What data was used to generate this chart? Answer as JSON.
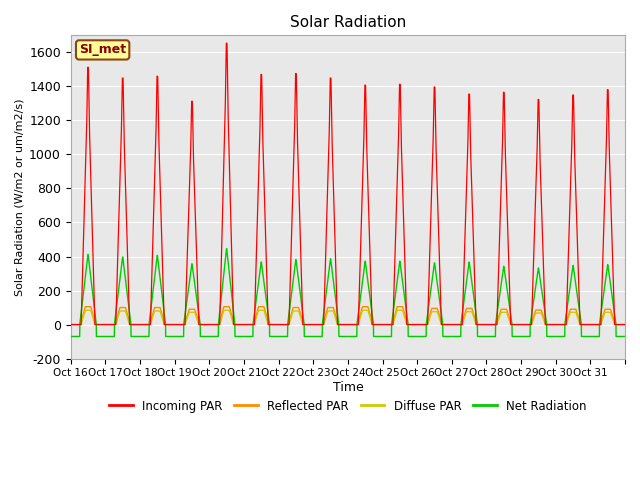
{
  "title": "Solar Radiation",
  "xlabel": "Time",
  "ylabel": "Solar Radiation (W/m2 or um/m2/s)",
  "ylim": [
    -200,
    1700
  ],
  "yticks": [
    -200,
    0,
    200,
    400,
    600,
    800,
    1000,
    1200,
    1400,
    1600
  ],
  "x_labels": [
    "Oct 16",
    "Oct 17",
    "Oct 18",
    "Oct 19",
    "Oct 20",
    "Oct 21",
    "Oct 22",
    "Oct 23",
    "Oct 24",
    "Oct 25",
    "Oct 26",
    "Oct 27",
    "Oct 28",
    "Oct 29",
    "Oct 30",
    "Oct 31"
  ],
  "color_incoming": "#FF0000",
  "color_reflected": "#FF8C00",
  "color_diffuse": "#CCCC00",
  "color_net": "#00CC00",
  "label_box": "SI_met",
  "background_color": "#E8E8E8",
  "peak_incoming": [
    1440,
    1380,
    1390,
    1250,
    1575,
    1400,
    1405,
    1380,
    1340,
    1345,
    1330,
    1290,
    1300,
    1260,
    1285,
    1315
  ],
  "peak_net": [
    415,
    400,
    410,
    360,
    450,
    370,
    385,
    390,
    375,
    375,
    365,
    370,
    345,
    335,
    350,
    355
  ],
  "peak_reflected": [
    105,
    100,
    100,
    90,
    105,
    105,
    100,
    100,
    105,
    105,
    95,
    95,
    90,
    85,
    90,
    90
  ],
  "night_net": -70,
  "num_days": 16
}
